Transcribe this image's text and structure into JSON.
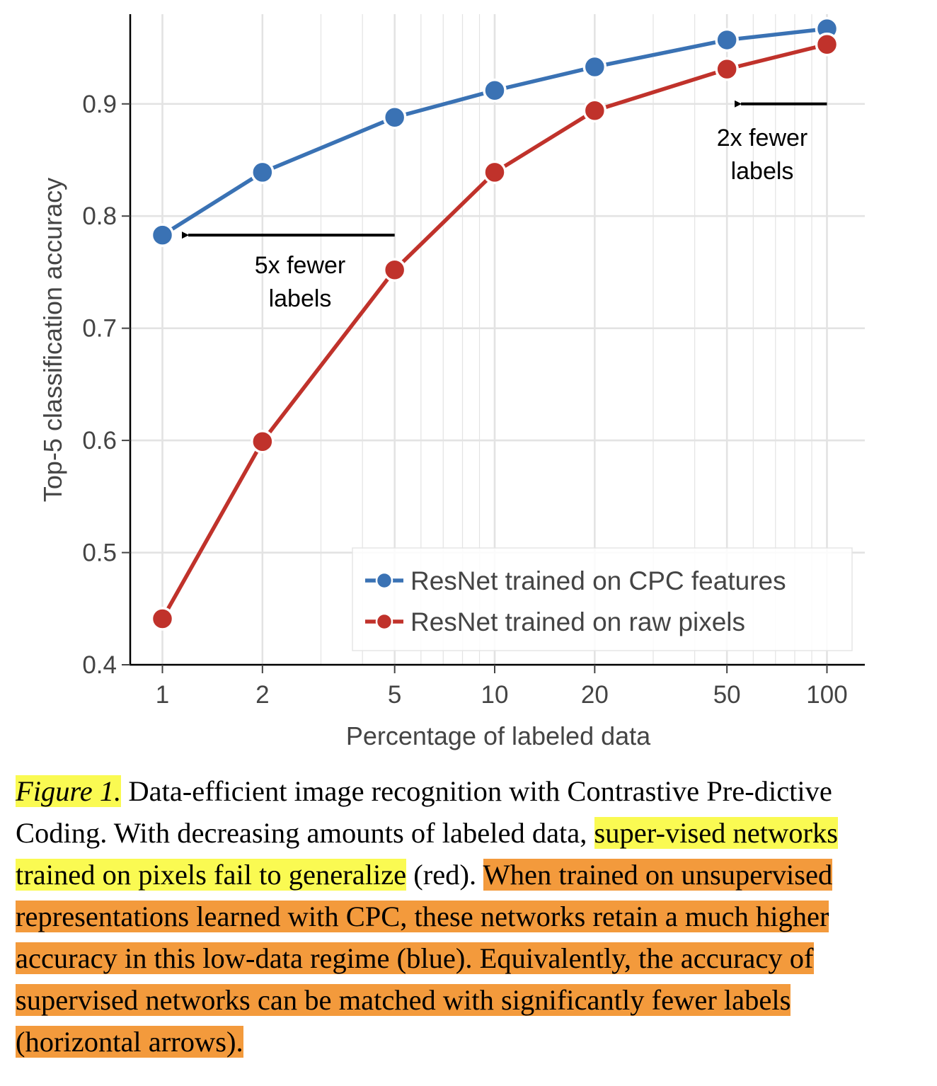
{
  "chart_data": {
    "type": "line",
    "xscale": "log",
    "x": [
      1,
      2,
      5,
      10,
      20,
      50,
      100
    ],
    "x_tick_labels": [
      "1",
      "2",
      "5",
      "10",
      "20",
      "50",
      "100"
    ],
    "y_tick_labels": [
      "0.4",
      "0.5",
      "0.6",
      "0.7",
      "0.8",
      "0.9"
    ],
    "xlabel": "Percentage of labeled data",
    "ylabel": "Top-5 classification accuracy",
    "ylim": [
      0.4,
      0.98
    ],
    "xlim": [
      0.8,
      130
    ],
    "grid": true,
    "legend_position": "bottom-right",
    "series": [
      {
        "name": "ResNet trained on CPC features",
        "color": "#3a72b4",
        "values": [
          0.783,
          0.839,
          0.888,
          0.912,
          0.933,
          0.957,
          0.967
        ]
      },
      {
        "name": "ResNet trained on raw pixels",
        "color": "#c0322b",
        "values": [
          0.441,
          0.599,
          0.752,
          0.839,
          0.894,
          0.931,
          0.953
        ]
      }
    ],
    "annotations": [
      {
        "text_lines": [
          "5x fewer",
          "labels"
        ],
        "arrow_from": [
          5,
          0.783
        ],
        "arrow_to": [
          1.15,
          0.783
        ]
      },
      {
        "text_lines": [
          "2x fewer",
          "labels"
        ],
        "arrow_from": [
          100,
          0.9
        ],
        "arrow_to": [
          53,
          0.9
        ]
      }
    ]
  },
  "caption": {
    "figure_label": "Figure 1.",
    "parts": [
      {
        "text": " Data-efficient image recognition with Contrastive Pre-dictive Coding. With decreasing amounts of labeled data, ",
        "highlight": "none"
      },
      {
        "text": "super-vised networks trained on pixels fail to generalize",
        "highlight": "yellow"
      },
      {
        "text": " (red). ",
        "highlight": "none"
      },
      {
        "text": "When trained on unsupervised representations learned with CPC, these networks retain a much higher accuracy in this low-data regime (blue). Equivalently, the accuracy of supervised networks can be matched with significantly fewer labels (horizontal arrows).",
        "highlight": "orange"
      }
    ]
  }
}
